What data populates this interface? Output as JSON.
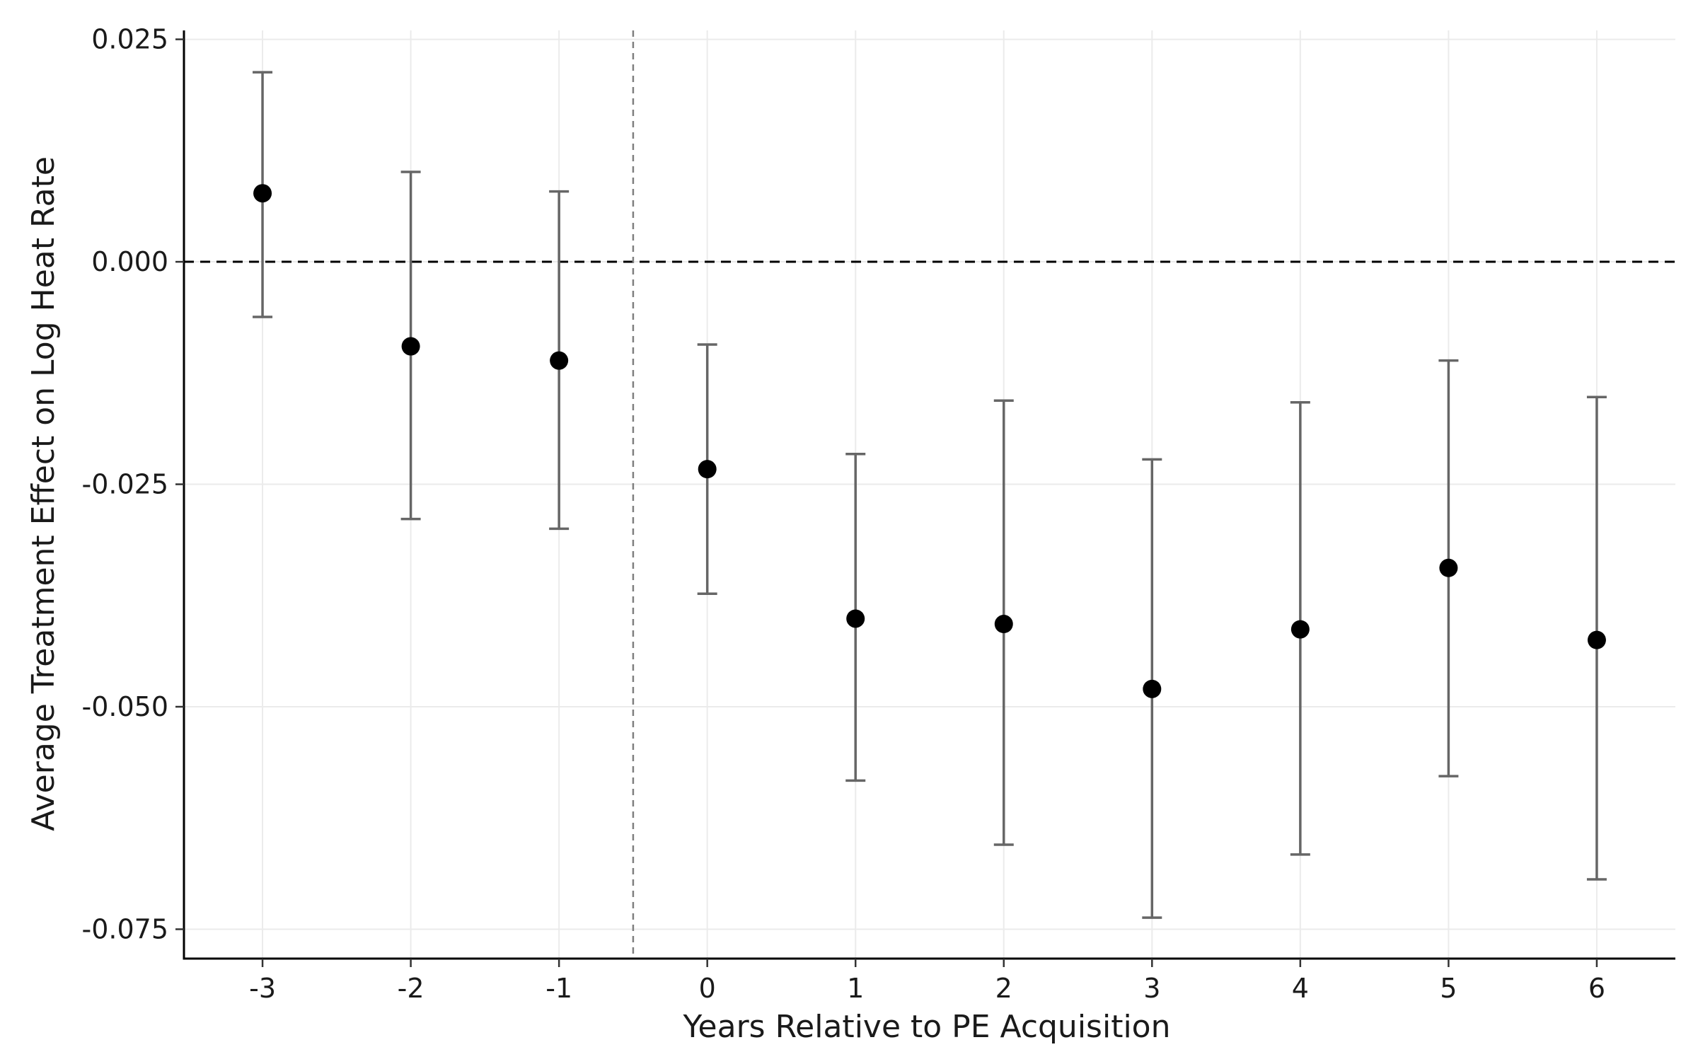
{
  "chart_data": {
    "type": "scatter",
    "subtype": "event-study point estimates with confidence intervals",
    "xlabel": "Years Relative to PE Acquisition",
    "ylabel": "Average Treatment Effect on Log Heat Rate",
    "x_ticks": [
      "-3",
      "-2",
      "-1",
      "0",
      "1",
      "2",
      "3",
      "4",
      "5",
      "6"
    ],
    "y_ticks": [
      "0.025",
      "0.000",
      "-0.025",
      "-0.050",
      "-0.075"
    ],
    "y_tick_values": [
      0.025,
      0.0,
      -0.025,
      -0.05,
      -0.075
    ],
    "xlim": [
      -3.53,
      6.53
    ],
    "ylim": [
      -0.0783,
      0.026
    ],
    "series": [
      {
        "x": [
          -3,
          -2,
          -1,
          0,
          1,
          2,
          3,
          4,
          5,
          6
        ],
        "estimate": [
          0.0077,
          -0.0095,
          -0.0111,
          -0.0233,
          -0.0401,
          -0.0407,
          -0.048,
          -0.0413,
          -0.0344,
          -0.0425
        ],
        "ci_lower": [
          -0.0062,
          -0.0289,
          -0.03,
          -0.0373,
          -0.0583,
          -0.0655,
          -0.0737,
          -0.0666,
          -0.0578,
          -0.0694
        ],
        "ci_upper": [
          0.0213,
          0.0101,
          0.0079,
          -0.0093,
          -0.0216,
          -0.0156,
          -0.0222,
          -0.0158,
          -0.0111,
          -0.0152
        ]
      }
    ],
    "reference_lines": {
      "horizontal_y": 0.0,
      "vertical_x": -0.5
    },
    "grid": true,
    "legend": "none",
    "colors": {
      "points": "#000000",
      "error_bars": "#666666",
      "grid": "#ebebeb",
      "reference_line": "#000000",
      "vertical_line": "#7f7f7f"
    }
  }
}
